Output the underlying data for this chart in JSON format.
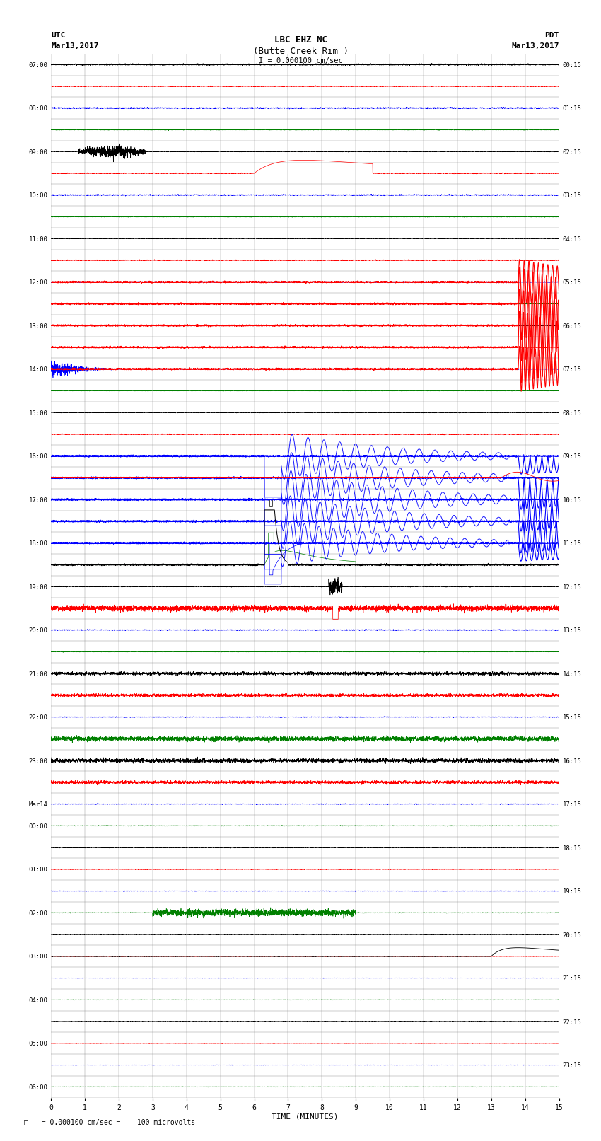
{
  "title_line1": "LBC EHZ NC",
  "title_line2": "(Butte Creek Rim )",
  "scale_text": "I = 0.000100 cm/sec",
  "utc_label": "UTC",
  "utc_date": "Mar13,2017",
  "pdt_label": "PDT",
  "pdt_date": "Mar13,2017",
  "xlabel": "TIME (MINUTES)",
  "footer_text": "  = 0.000100 cm/sec =    100 microvolts",
  "bg_color": "#ffffff",
  "grid_color": "#888888",
  "fig_width": 8.5,
  "fig_height": 16.13,
  "left_times": [
    "07:00",
    "",
    "08:00",
    "",
    "09:00",
    "",
    "10:00",
    "",
    "11:00",
    "",
    "12:00",
    "",
    "13:00",
    "",
    "14:00",
    "",
    "15:00",
    "",
    "16:00",
    "",
    "17:00",
    "",
    "18:00",
    "",
    "19:00",
    "",
    "20:00",
    "",
    "21:00",
    "",
    "22:00",
    "",
    "23:00",
    "",
    "Mar14",
    "00:00",
    "",
    "01:00",
    "",
    "02:00",
    "",
    "03:00",
    "",
    "04:00",
    "",
    "05:00",
    "",
    "06:00",
    ""
  ],
  "right_times": [
    "00:15",
    "",
    "01:15",
    "",
    "02:15",
    "",
    "03:15",
    "",
    "04:15",
    "",
    "05:15",
    "",
    "06:15",
    "",
    "07:15",
    "",
    "08:15",
    "",
    "09:15",
    "",
    "10:15",
    "",
    "11:15",
    "",
    "12:15",
    "",
    "13:15",
    "",
    "14:15",
    "",
    "15:15",
    "",
    "16:15",
    "",
    "17:15",
    "",
    "18:15",
    "",
    "19:15",
    "",
    "20:15",
    "",
    "21:15",
    "",
    "22:15",
    "",
    "23:15",
    "",
    ""
  ],
  "n_rows": 48,
  "n_cols": 15
}
